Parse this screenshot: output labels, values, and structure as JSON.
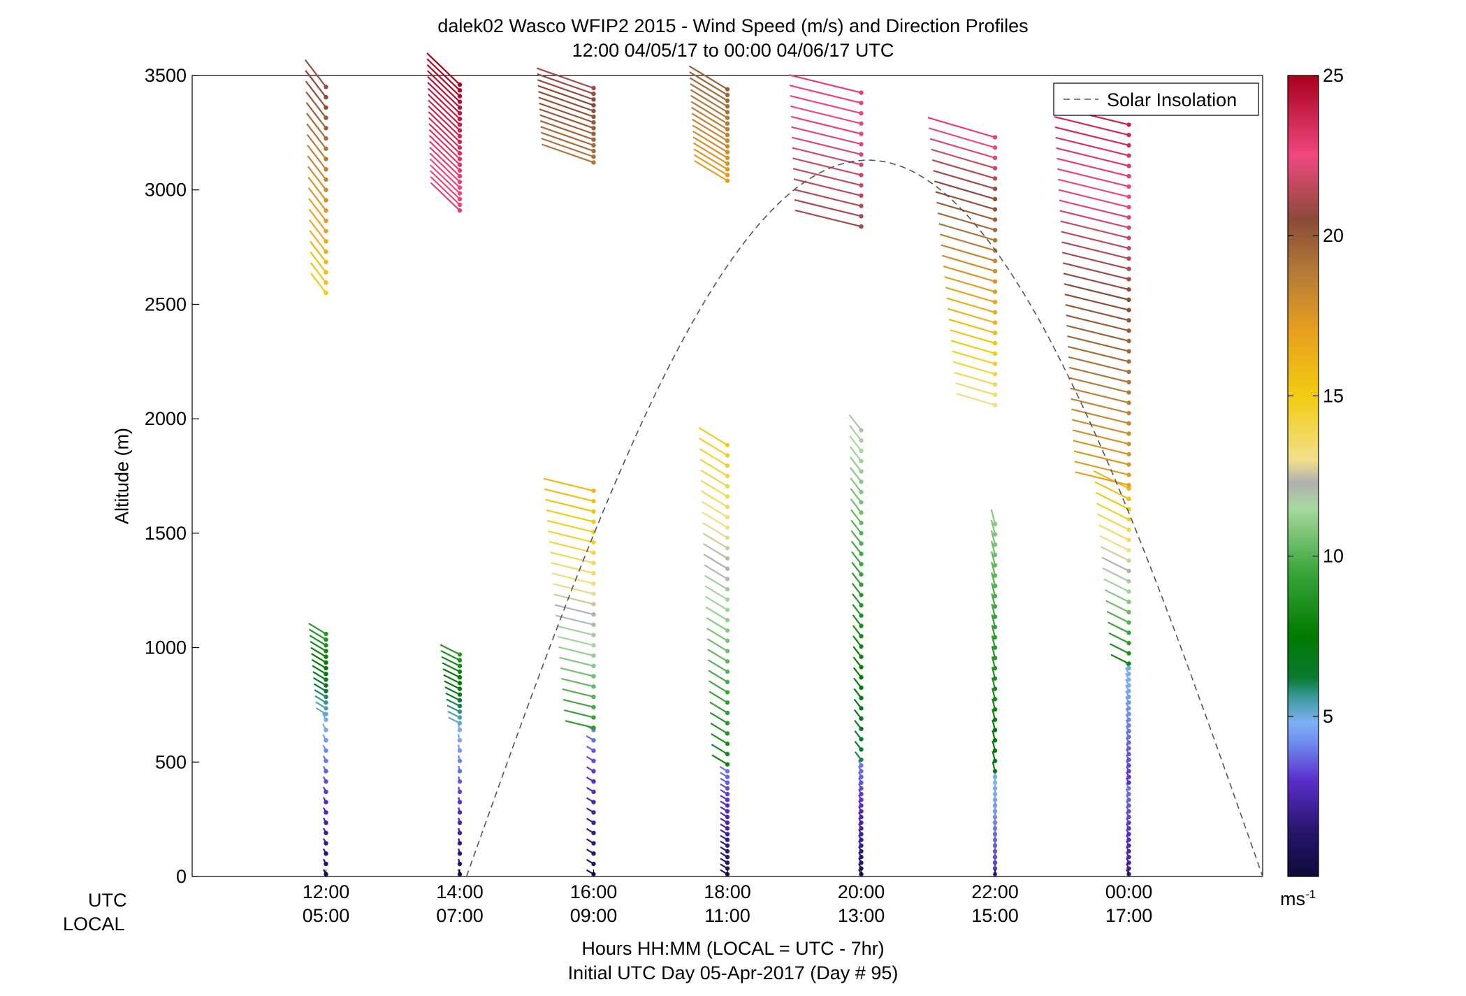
{
  "chart_data": {
    "type": "wind-profile-barbs",
    "title": "dalek02 Wasco WFIP2 2015 - Wind Speed (m/s) and Direction Profiles",
    "subtitle": "12:00 04/05/17 to 00:00 04/06/17  UTC",
    "ylabel": "Altitude (m)",
    "xlabel": "Hours HH:MM  (LOCAL = UTC - 7hr)",
    "footer": "Initial UTC Day 05-Apr-2017 (Day # 95)",
    "row_labels": {
      "utc": "UTC",
      "local": "LOCAL"
    },
    "ylim": [
      0,
      3500
    ],
    "y_ticks": [
      "0",
      "500",
      "1000",
      "1500",
      "2000",
      "2500",
      "3000",
      "3500"
    ],
    "xlim_hours": [
      10,
      26
    ],
    "x_ticks": [
      {
        "hour": 12,
        "utc": "12:00",
        "local": "05:00"
      },
      {
        "hour": 14,
        "utc": "14:00",
        "local": "07:00"
      },
      {
        "hour": 16,
        "utc": "16:00",
        "local": "09:00"
      },
      {
        "hour": 18,
        "utc": "18:00",
        "local": "11:00"
      },
      {
        "hour": 20,
        "utc": "20:00",
        "local": "13:00"
      },
      {
        "hour": 22,
        "utc": "22:00",
        "local": "15:00"
      },
      {
        "hour": 24,
        "utc": "00:00",
        "local": "17:00"
      }
    ],
    "legend": {
      "label": "Solar Insolation",
      "position": "top-right",
      "style": "dashed",
      "color": "#555555"
    },
    "colorbar": {
      "min": 0,
      "max": 25,
      "ticks": [
        "5",
        "10",
        "15",
        "20",
        "25"
      ],
      "unit": "ms-1",
      "stops": [
        {
          "v": 0,
          "c": "#0d0b3a"
        },
        {
          "v": 1.5,
          "c": "#2a1670"
        },
        {
          "v": 3,
          "c": "#5a2ecc"
        },
        {
          "v": 4.2,
          "c": "#6f8ff0"
        },
        {
          "v": 4.8,
          "c": "#7fb0f5"
        },
        {
          "v": 5.6,
          "c": "#3a9a9a"
        },
        {
          "v": 6.2,
          "c": "#0a7a30"
        },
        {
          "v": 7.5,
          "c": "#007a00"
        },
        {
          "v": 9.5,
          "c": "#3aa53a"
        },
        {
          "v": 11.5,
          "c": "#a8d8a0"
        },
        {
          "v": 12.3,
          "c": "#b0b0b0"
        },
        {
          "v": 13,
          "c": "#f2e08a"
        },
        {
          "v": 15,
          "c": "#f2cc10"
        },
        {
          "v": 17,
          "c": "#e8a020"
        },
        {
          "v": 19,
          "c": "#b07838"
        },
        {
          "v": 20.5,
          "c": "#8a4a38"
        },
        {
          "v": 22.5,
          "c": "#f04880"
        },
        {
          "v": 25,
          "c": "#a8001c"
        }
      ]
    },
    "profile_samples": [
      {
        "hour": 12,
        "layers": [
          {
            "alt_range": [
              0,
              700
            ],
            "speed_range": [
              1,
              5
            ],
            "dir_deg": 260
          },
          {
            "alt_range": [
              700,
              1060
            ],
            "speed_range": [
              5,
              9
            ],
            "dir_deg": 240
          },
          {
            "alt_range": [
              2540,
              3470
            ],
            "speed_range": [
              15,
              21
            ],
            "dir_deg": 255
          }
        ]
      },
      {
        "hour": 14,
        "layers": [
          {
            "alt_range": [
              0,
              660
            ],
            "speed_range": [
              1,
              5
            ],
            "dir_deg": 275
          },
          {
            "alt_range": [
              660,
              980
            ],
            "speed_range": [
              5,
              9
            ],
            "dir_deg": 235
          },
          {
            "alt_range": [
              2900,
              3470
            ],
            "speed_range": [
              22,
              25
            ],
            "dir_deg": 250
          }
        ]
      },
      {
        "hour": 16,
        "layers": [
          {
            "alt_range": [
              0,
              640
            ],
            "speed_range": [
              1,
              4
            ],
            "dir_deg": 300
          },
          {
            "alt_range": [
              640,
              1700
            ],
            "speed_range": [
              9,
              16
            ],
            "dir_deg": 215
          },
          {
            "alt_range": [
              3110,
              3460
            ],
            "speed_range": [
              19,
              21
            ],
            "dir_deg": 225
          }
        ]
      },
      {
        "hour": 18,
        "layers": [
          {
            "alt_range": [
              0,
              480
            ],
            "speed_range": [
              1,
              4
            ],
            "dir_deg": 300
          },
          {
            "alt_range": [
              480,
              1910
            ],
            "speed_range": [
              8,
              15
            ],
            "dir_deg": 240
          },
          {
            "alt_range": [
              3030,
              3460
            ],
            "speed_range": [
              17,
              20
            ],
            "dir_deg": 240
          }
        ]
      },
      {
        "hour": 20,
        "layers": [
          {
            "alt_range": [
              0,
              500
            ],
            "speed_range": [
              1,
              4
            ],
            "dir_deg": 280
          },
          {
            "alt_range": [
              500,
              1980
            ],
            "speed_range": [
              6,
              12
            ],
            "dir_deg": 255
          },
          {
            "alt_range": [
              2830,
              3460
            ],
            "speed_range": [
              21,
              23
            ],
            "dir_deg": 215
          }
        ]
      },
      {
        "hour": 22,
        "layers": [
          {
            "alt_range": [
              0,
              450
            ],
            "speed_range": [
              3,
              5
            ],
            "dir_deg": 270
          },
          {
            "alt_range": [
              450,
              1560
            ],
            "speed_range": [
              7,
              11
            ],
            "dir_deg": 265
          },
          {
            "alt_range": [
              2050,
              3250
            ],
            "speed_range": [
              13,
              23
            ],
            "dir_deg": 220
          }
        ]
      },
      {
        "hour": 24,
        "layers": [
          {
            "alt_range": [
              0,
              400
            ],
            "speed_range": [
              2,
              4
            ],
            "dir_deg": 280
          },
          {
            "alt_range": [
              400,
              920
            ],
            "speed_range": [
              3,
              5
            ],
            "dir_deg": 260
          },
          {
            "alt_range": [
              920,
              1700
            ],
            "speed_range": [
              8,
              16
            ],
            "dir_deg": 235
          },
          {
            "alt_range": [
              1700,
              3320
            ],
            "speed_range": [
              17,
              24
            ],
            "dir_deg": 215
          }
        ]
      }
    ],
    "solar_insolation_curve": {
      "start_hour": 14.1,
      "peak_hour": 20.1,
      "end_hour": 26.0,
      "peak_altitude": 3130
    }
  }
}
